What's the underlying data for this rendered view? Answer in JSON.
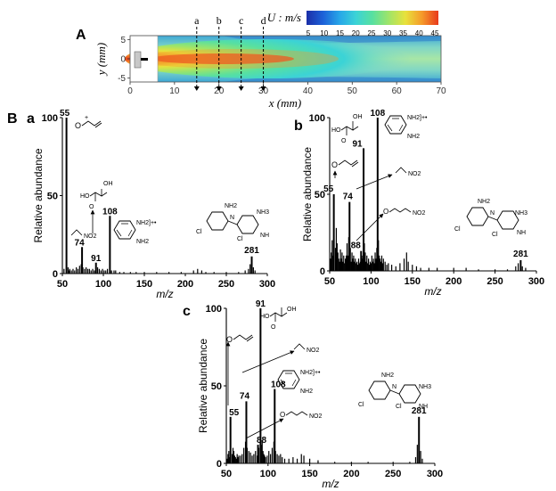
{
  "panel_labels": [
    "A",
    "B",
    "a",
    "b",
    "c"
  ],
  "flow_map": {
    "line_labels": [
      "a",
      "b",
      "c",
      "d"
    ],
    "line_x": [
      15,
      20,
      25,
      30
    ],
    "colorbar": {
      "title": "U : m/s",
      "ticks": [
        "5",
        "10",
        "15",
        "20",
        "25",
        "30",
        "35",
        "40",
        "45"
      ],
      "colors": [
        "#1b2fa8",
        "#1d61d8",
        "#27a6e8",
        "#3bd3d6",
        "#58e0a0",
        "#a0e468",
        "#e8e23c",
        "#f59a2a",
        "#e83a1c"
      ]
    },
    "xlabel": "x (mm)",
    "ylabel": "y (mm)",
    "x_ticks": [
      "0",
      "10",
      "20",
      "30",
      "40",
      "50",
      "60",
      "70"
    ],
    "y_ticks": [
      "5",
      "0",
      "-5"
    ],
    "xlim": [
      0,
      70
    ],
    "ylim": [
      -6,
      6
    ]
  },
  "structure_labels": {
    "acrolein_cation": "O",
    "oxalic_ho": "HO",
    "oxalic_oh": "OH",
    "oxalic_o": "O",
    "nh2": "NH2",
    "nh2_radical": "NH2]+•",
    "nitro": "NO2",
    "cl": "Cl",
    "nh": "NH",
    "nh3": "NH3",
    "n": "N"
  },
  "chart_data": [
    {
      "type": "bar",
      "panel": "a",
      "xlabel": "m/z",
      "ylabel": "Relative abundance",
      "xlim": [
        50,
        300
      ],
      "ylim": [
        0,
        100
      ],
      "x_ticks": [
        "50",
        "100",
        "150",
        "200",
        "250",
        "300"
      ],
      "y_ticks": [
        "0",
        "50",
        "100"
      ],
      "peaks": [
        {
          "mz": 55,
          "value": 100,
          "label": "55"
        },
        {
          "mz": 74,
          "value": 17,
          "label": "74"
        },
        {
          "mz": 91,
          "value": 7,
          "label": "91"
        },
        {
          "mz": 108,
          "value": 37,
          "label": "108"
        },
        {
          "mz": 281,
          "value": 11,
          "label": "281"
        }
      ],
      "minor_peaks": [
        [
          52,
          3
        ],
        [
          57,
          4
        ],
        [
          58,
          2
        ],
        [
          59,
          3
        ],
        [
          61,
          2
        ],
        [
          63,
          3
        ],
        [
          65,
          2
        ],
        [
          67,
          4
        ],
        [
          69,
          3
        ],
        [
          71,
          5
        ],
        [
          73,
          6
        ],
        [
          75,
          4
        ],
        [
          77,
          3
        ],
        [
          79,
          4
        ],
        [
          81,
          3
        ],
        [
          83,
          3
        ],
        [
          85,
          2
        ],
        [
          87,
          3
        ],
        [
          89,
          2
        ],
        [
          93,
          4
        ],
        [
          95,
          3
        ],
        [
          97,
          2
        ],
        [
          99,
          3
        ],
        [
          101,
          2
        ],
        [
          103,
          2
        ],
        [
          105,
          3
        ],
        [
          110,
          2
        ],
        [
          113,
          2
        ],
        [
          115,
          2
        ],
        [
          120,
          1
        ],
        [
          125,
          1
        ],
        [
          133,
          1
        ],
        [
          140,
          1
        ],
        [
          150,
          1
        ],
        [
          165,
          1
        ],
        [
          180,
          1
        ],
        [
          195,
          1
        ],
        [
          210,
          2
        ],
        [
          215,
          3
        ],
        [
          220,
          2
        ],
        [
          225,
          1
        ],
        [
          235,
          1
        ],
        [
          250,
          1
        ],
        [
          265,
          1
        ],
        [
          273,
          2
        ],
        [
          277,
          3
        ],
        [
          279,
          6
        ],
        [
          283,
          4
        ],
        [
          285,
          2
        ]
      ]
    },
    {
      "type": "bar",
      "panel": "b",
      "xlabel": "m/z",
      "ylabel": "Relative abundance",
      "xlim": [
        50,
        300
      ],
      "ylim": [
        0,
        100
      ],
      "x_ticks": [
        "50",
        "100",
        "150",
        "200",
        "250",
        "300"
      ],
      "y_ticks": [
        "0",
        "50",
        "100"
      ],
      "peaks": [
        {
          "mz": 55,
          "value": 50,
          "label": "55"
        },
        {
          "mz": 74,
          "value": 45,
          "label": "74"
        },
        {
          "mz": 88,
          "value": 13,
          "label": "88"
        },
        {
          "mz": 91,
          "value": 80,
          "label": "91"
        },
        {
          "mz": 108,
          "value": 100,
          "label": "108"
        },
        {
          "mz": 281,
          "value": 7,
          "label": "281"
        }
      ],
      "minor_peaks": [
        [
          51,
          8
        ],
        [
          52,
          12
        ],
        [
          53,
          20
        ],
        [
          54,
          10
        ],
        [
          57,
          15
        ],
        [
          58,
          28
        ],
        [
          59,
          18
        ],
        [
          60,
          12
        ],
        [
          61,
          8
        ],
        [
          62,
          6
        ],
        [
          63,
          14
        ],
        [
          64,
          8
        ],
        [
          65,
          12
        ],
        [
          66,
          6
        ],
        [
          67,
          10
        ],
        [
          68,
          5
        ],
        [
          69,
          8
        ],
        [
          70,
          10
        ],
        [
          71,
          18
        ],
        [
          72,
          10
        ],
        [
          73,
          22
        ],
        [
          75,
          15
        ],
        [
          76,
          6
        ],
        [
          77,
          12
        ],
        [
          78,
          8
        ],
        [
          79,
          10
        ],
        [
          80,
          6
        ],
        [
          81,
          8
        ],
        [
          82,
          5
        ],
        [
          83,
          6
        ],
        [
          84,
          4
        ],
        [
          85,
          8
        ],
        [
          86,
          5
        ],
        [
          87,
          6
        ],
        [
          89,
          10
        ],
        [
          90,
          8
        ],
        [
          92,
          18
        ],
        [
          93,
          12
        ],
        [
          94,
          6
        ],
        [
          95,
          10
        ],
        [
          96,
          5
        ],
        [
          97,
          8
        ],
        [
          98,
          4
        ],
        [
          99,
          6
        ],
        [
          100,
          5
        ],
        [
          101,
          10
        ],
        [
          102,
          6
        ],
        [
          103,
          8
        ],
        [
          104,
          5
        ],
        [
          105,
          12
        ],
        [
          106,
          8
        ],
        [
          107,
          15
        ],
        [
          109,
          20
        ],
        [
          110,
          10
        ],
        [
          111,
          8
        ],
        [
          112,
          6
        ],
        [
          113,
          10
        ],
        [
          114,
          5
        ],
        [
          115,
          8
        ],
        [
          117,
          6
        ],
        [
          119,
          4
        ],
        [
          121,
          5
        ],
        [
          125,
          4
        ],
        [
          130,
          3
        ],
        [
          135,
          5
        ],
        [
          140,
          8
        ],
        [
          143,
          12
        ],
        [
          145,
          6
        ],
        [
          150,
          4
        ],
        [
          155,
          3
        ],
        [
          160,
          2
        ],
        [
          170,
          2
        ],
        [
          180,
          2
        ],
        [
          200,
          2
        ],
        [
          215,
          2
        ],
        [
          230,
          1
        ],
        [
          250,
          1
        ],
        [
          265,
          1
        ],
        [
          275,
          3
        ],
        [
          278,
          5
        ],
        [
          283,
          3
        ],
        [
          287,
          2
        ]
      ]
    },
    {
      "type": "bar",
      "panel": "c",
      "xlabel": "m/z",
      "ylabel": "Relative abundance",
      "xlim": [
        50,
        300
      ],
      "ylim": [
        0,
        100
      ],
      "x_ticks": [
        "50",
        "100",
        "150",
        "200",
        "250",
        "300"
      ],
      "y_ticks": [
        "0",
        "50",
        "100"
      ],
      "peaks": [
        {
          "mz": 55,
          "value": 30,
          "label": "55"
        },
        {
          "mz": 74,
          "value": 40,
          "label": "74"
        },
        {
          "mz": 88,
          "value": 12,
          "label": "88"
        },
        {
          "mz": 91,
          "value": 100,
          "label": "91"
        },
        {
          "mz": 108,
          "value": 48,
          "label": "108"
        },
        {
          "mz": 281,
          "value": 30,
          "label": "281"
        }
      ],
      "minor_peaks": [
        [
          51,
          3
        ],
        [
          52,
          6
        ],
        [
          53,
          8
        ],
        [
          54,
          4
        ],
        [
          57,
          6
        ],
        [
          58,
          10
        ],
        [
          59,
          8
        ],
        [
          60,
          5
        ],
        [
          61,
          4
        ],
        [
          62,
          3
        ],
        [
          63,
          6
        ],
        [
          64,
          4
        ],
        [
          65,
          5
        ],
        [
          67,
          5
        ],
        [
          69,
          6
        ],
        [
          71,
          10
        ],
        [
          73,
          14
        ],
        [
          75,
          10
        ],
        [
          77,
          8
        ],
        [
          79,
          7
        ],
        [
          81,
          5
        ],
        [
          83,
          6
        ],
        [
          85,
          8
        ],
        [
          87,
          5
        ],
        [
          89,
          10
        ],
        [
          92,
          12
        ],
        [
          93,
          15
        ],
        [
          94,
          8
        ],
        [
          95,
          6
        ],
        [
          96,
          5
        ],
        [
          97,
          4
        ],
        [
          99,
          5
        ],
        [
          101,
          8
        ],
        [
          103,
          6
        ],
        [
          105,
          10
        ],
        [
          107,
          14
        ],
        [
          109,
          8
        ],
        [
          111,
          6
        ],
        [
          113,
          5
        ],
        [
          115,
          6
        ],
        [
          117,
          4
        ],
        [
          120,
          3
        ],
        [
          125,
          3
        ],
        [
          130,
          4
        ],
        [
          135,
          3
        ],
        [
          140,
          6
        ],
        [
          143,
          5
        ],
        [
          150,
          3
        ],
        [
          160,
          2
        ],
        [
          180,
          1
        ],
        [
          200,
          1
        ],
        [
          220,
          1
        ],
        [
          250,
          1
        ],
        [
          270,
          1
        ],
        [
          277,
          4
        ],
        [
          279,
          12
        ],
        [
          283,
          8
        ],
        [
          285,
          3
        ]
      ]
    }
  ]
}
